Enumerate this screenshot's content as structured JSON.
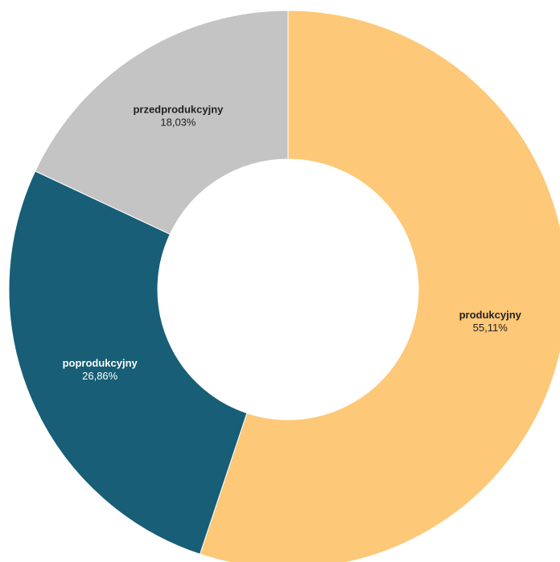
{
  "chart_data": {
    "type": "donut",
    "categories": [
      "produkcyjny",
      "poprodukcyjny",
      "przedprodukcyjny"
    ],
    "values": [
      55.11,
      26.86,
      18.03
    ],
    "value_labels": [
      "55,11%",
      "26,86%",
      "18,03%"
    ],
    "colors": [
      "#fdc877",
      "#175e76",
      "#c4c4c4"
    ]
  }
}
